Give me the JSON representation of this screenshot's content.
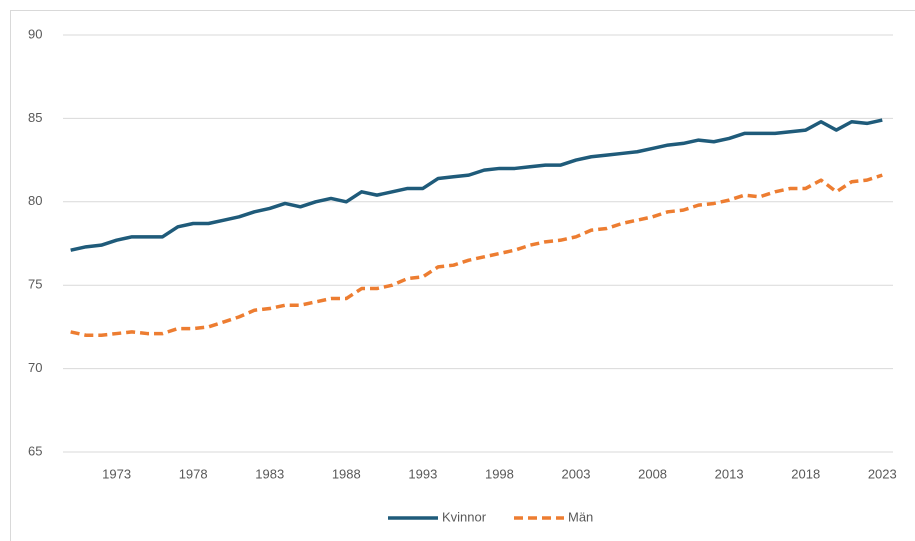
{
  "chart_data": {
    "type": "line",
    "x": [
      1970,
      1971,
      1972,
      1973,
      1974,
      1975,
      1976,
      1977,
      1978,
      1979,
      1980,
      1981,
      1982,
      1983,
      1984,
      1985,
      1986,
      1987,
      1988,
      1989,
      1990,
      1991,
      1992,
      1993,
      1994,
      1995,
      1996,
      1997,
      1998,
      1999,
      2000,
      2001,
      2002,
      2003,
      2004,
      2005,
      2006,
      2007,
      2008,
      2009,
      2010,
      2011,
      2012,
      2013,
      2014,
      2015,
      2016,
      2017,
      2018,
      2019,
      2020,
      2021,
      2022,
      2023
    ],
    "series": [
      {
        "name": "Kvinnor",
        "color": "#1f5b7a",
        "dash": false,
        "values": [
          77.1,
          77.3,
          77.4,
          77.7,
          77.9,
          77.9,
          77.9,
          78.5,
          78.7,
          78.7,
          78.9,
          79.1,
          79.4,
          79.6,
          79.9,
          79.7,
          80.0,
          80.2,
          80.0,
          80.6,
          80.4,
          80.6,
          80.8,
          80.8,
          81.4,
          81.5,
          81.6,
          81.9,
          82.0,
          82.0,
          82.1,
          82.2,
          82.2,
          82.5,
          82.7,
          82.8,
          82.9,
          83.0,
          83.2,
          83.4,
          83.5,
          83.7,
          83.6,
          83.8,
          84.1,
          84.1,
          84.1,
          84.2,
          84.3,
          84.8,
          84.3,
          84.8,
          84.7,
          84.9
        ]
      },
      {
        "name": "Män",
        "color": "#ed7d31",
        "dash": true,
        "values": [
          72.2,
          72.0,
          72.0,
          72.1,
          72.2,
          72.1,
          72.1,
          72.4,
          72.4,
          72.5,
          72.8,
          73.1,
          73.5,
          73.6,
          73.8,
          73.8,
          74.0,
          74.2,
          74.2,
          74.8,
          74.8,
          75.0,
          75.4,
          75.5,
          76.1,
          76.2,
          76.5,
          76.7,
          76.9,
          77.1,
          77.4,
          77.6,
          77.7,
          77.9,
          78.3,
          78.4,
          78.7,
          78.9,
          79.1,
          79.4,
          79.5,
          79.8,
          79.9,
          80.1,
          80.4,
          80.3,
          80.6,
          80.8,
          80.8,
          81.3,
          80.6,
          81.2,
          81.3,
          81.6
        ]
      }
    ],
    "xlim": [
      1969.5,
      2023.7
    ],
    "xticks": [
      1973,
      1978,
      1983,
      1988,
      1993,
      1998,
      2003,
      2008,
      2013,
      2018,
      2023
    ],
    "ylim": [
      65,
      90
    ],
    "yticks": [
      65,
      70,
      75,
      80,
      85,
      90
    ],
    "grid": true,
    "legend": "bottom"
  }
}
